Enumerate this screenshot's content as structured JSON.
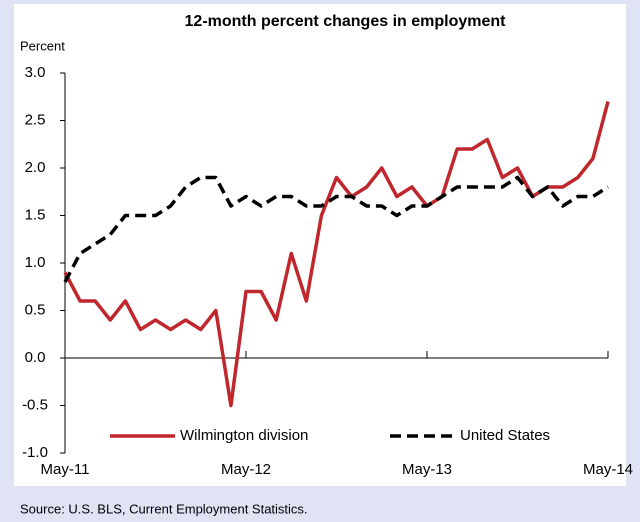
{
  "chart_data": {
    "type": "line",
    "title": "12-month percent changes in employment",
    "ylabel": "Percent",
    "source": "Source: U.S. BLS, Current Employment Statistics.",
    "categories": [
      "May-11",
      null,
      null,
      null,
      null,
      null,
      null,
      null,
      null,
      null,
      null,
      null,
      "May-12",
      null,
      null,
      null,
      null,
      null,
      null,
      null,
      null,
      null,
      null,
      null,
      "May-13",
      null,
      null,
      null,
      null,
      null,
      null,
      null,
      null,
      null,
      null,
      null,
      "May-14"
    ],
    "series": [
      {
        "name": "Wilmington division",
        "color": "#c0272d",
        "style": "solid",
        "values": [
          0.9,
          0.6,
          0.6,
          0.4,
          0.6,
          0.3,
          0.4,
          0.3,
          0.4,
          0.3,
          0.5,
          -0.5,
          0.7,
          0.7,
          0.4,
          1.1,
          0.6,
          1.5,
          1.9,
          1.7,
          1.8,
          2.0,
          1.7,
          1.8,
          1.6,
          1.7,
          2.2,
          2.2,
          2.3,
          1.9,
          2.0,
          1.7,
          1.8,
          1.8,
          1.9,
          2.1,
          2.7
        ]
      },
      {
        "name": "United States",
        "color": "#000000",
        "style": "dashed",
        "values": [
          0.8,
          1.1,
          1.2,
          1.3,
          1.5,
          1.5,
          1.5,
          1.6,
          1.8,
          1.9,
          1.9,
          1.6,
          1.7,
          1.6,
          1.7,
          1.7,
          1.6,
          1.6,
          1.7,
          1.7,
          1.6,
          1.6,
          1.5,
          1.6,
          1.6,
          1.7,
          1.8,
          1.8,
          1.8,
          1.8,
          1.9,
          1.7,
          1.8,
          1.6,
          1.7,
          1.7,
          1.8
        ]
      }
    ],
    "ylim": [
      -1.0,
      3.0
    ],
    "yticks": [
      {
        "value": -1.0,
        "label": "-1.0"
      },
      -0.5,
      {
        "value": 0.0,
        "label": "0.0"
      },
      0.5,
      {
        "value": 1.0,
        "label": "1.0"
      },
      1.5,
      {
        "value": 2.0,
        "label": "2.0"
      },
      2.5,
      {
        "value": 3.0,
        "label": "3.0"
      }
    ],
    "grid": false,
    "legend": "lower center"
  }
}
